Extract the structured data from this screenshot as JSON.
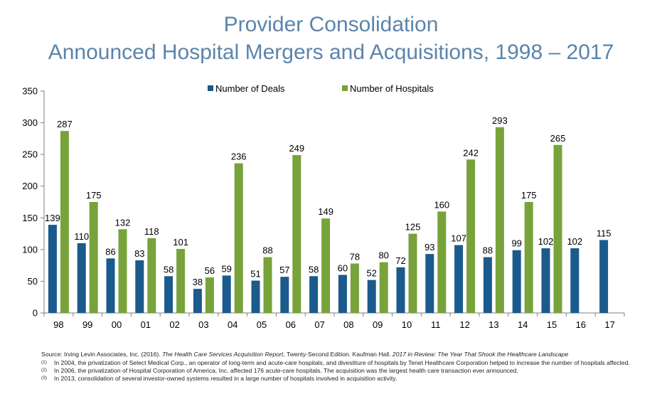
{
  "title": {
    "line1": "Provider Consolidation",
    "line2": "Announced Hospital Mergers and Acquisitions, 1998 – 2017"
  },
  "colors": {
    "deals": "#1b5a8c",
    "hospitals": "#77a33a",
    "axis": "#7f7f7f",
    "title": "#5b84ab"
  },
  "chart_data": {
    "type": "bar",
    "categories": [
      "98",
      "99",
      "00",
      "01",
      "02",
      "03",
      "04",
      "05",
      "06",
      "07",
      "08",
      "09",
      "10",
      "11",
      "12",
      "13",
      "14",
      "15",
      "16",
      "17"
    ],
    "series": [
      {
        "name": "Number of Deals",
        "values": [
          139,
          110,
          86,
          83,
          58,
          38,
          59,
          51,
          57,
          58,
          60,
          52,
          72,
          93,
          107,
          88,
          99,
          102,
          102,
          115
        ]
      },
      {
        "name": "Number of Hospitals",
        "values": [
          287,
          175,
          132,
          118,
          101,
          56,
          236,
          88,
          249,
          149,
          78,
          80,
          125,
          160,
          242,
          293,
          175,
          265,
          null,
          null
        ]
      }
    ],
    "yticks": [
      0,
      50,
      100,
      150,
      200,
      250,
      300,
      350
    ],
    "ylim": [
      0,
      350
    ],
    "legend": "top-center",
    "grid": false
  },
  "footnotes": {
    "source_prefix": "Source: Irving Levin Associates, Inc. (2016). ",
    "source_title1": "The Health Care Services Acquisition Report",
    "source_mid": ", Twenty-Second Edition. Kaufman Hall. ",
    "source_title2": "2017 in Review: The Year That Shook the Healthcare Landscape",
    "notes": [
      {
        "mark": "(1)",
        "text": "In 2004, the privatization of Select Medical Corp., an operator of long-term and acute-care hospitals, and divestiture of hospitals by Tenet Healthcare Corporation helped to increase the number of hospitals affected."
      },
      {
        "mark": "(2)",
        "text": "In 2006, the privatization of Hospital Corporation of America, Inc. affected 176 acute-care hospitals. The acquisition was the largest health care transaction ever announced."
      },
      {
        "mark": "(3)",
        "text": "In 2013, consolidation of several investor-owned systems resulted in a large number of hospitals involved in acquisition activity."
      }
    ]
  }
}
